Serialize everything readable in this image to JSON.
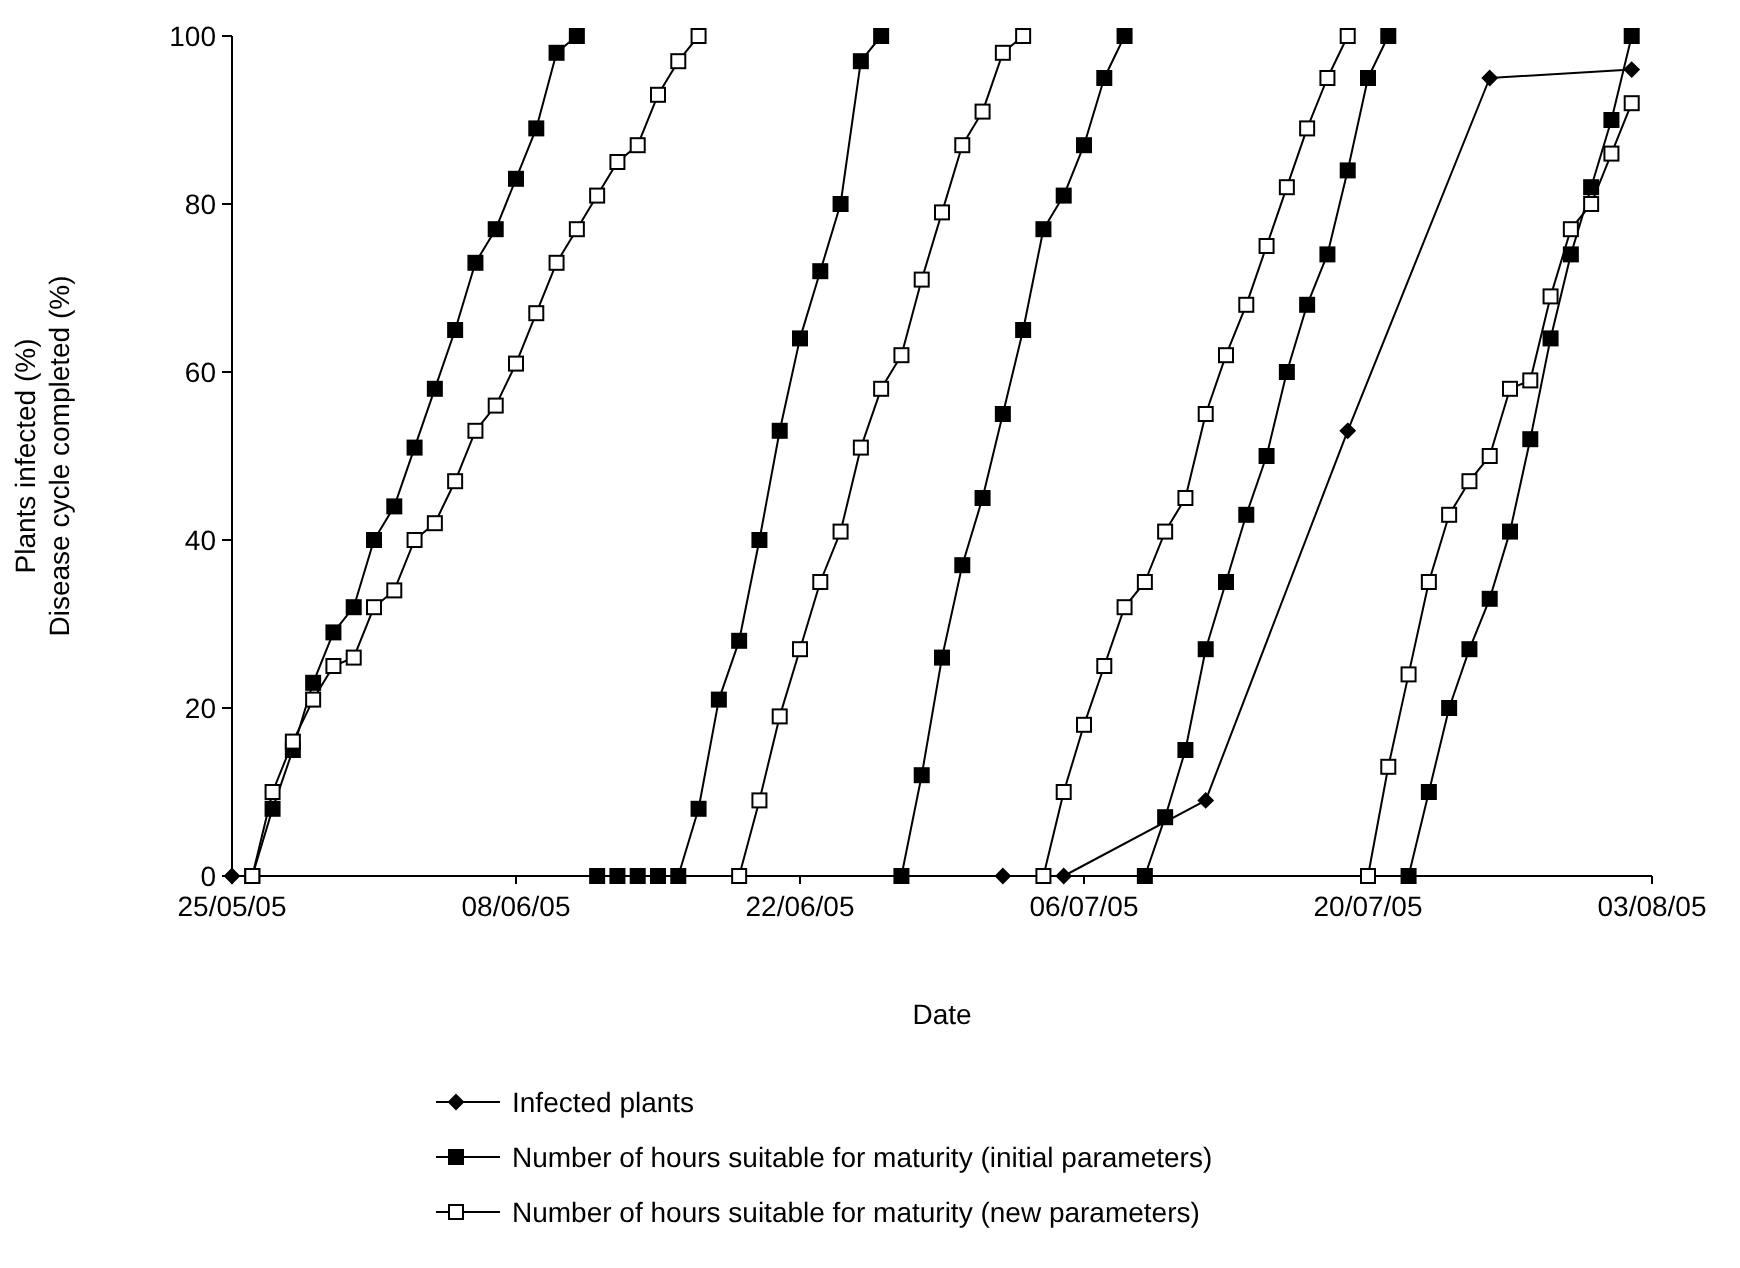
{
  "chart_data": {
    "type": "line",
    "xlabel": "Date",
    "ylabel": "Plants infected (%)\nDisease cycle completed (%)",
    "xlim": [
      "2005-05-25",
      "2005-08-03"
    ],
    "xticks": [
      {
        "value": "2005-05-25",
        "label": "25/05/05"
      },
      {
        "value": "2005-06-08",
        "label": "08/06/05"
      },
      {
        "value": "2005-06-22",
        "label": "22/06/05"
      },
      {
        "value": "2005-07-06",
        "label": "06/07/05"
      },
      {
        "value": "2005-07-20",
        "label": "20/07/05"
      },
      {
        "value": "2005-08-03",
        "label": "03/08/05"
      }
    ],
    "ylim": [
      0,
      100
    ],
    "yticks": [
      0,
      20,
      40,
      60,
      80,
      100
    ],
    "grid": false,
    "legend": "bottom",
    "line_style": "solid",
    "series": [
      {
        "name": "Infected plants",
        "color": "#000000",
        "marker": "diamond",
        "x": [
          "2005-05-25",
          "2005-07-02",
          "2005-07-05",
          "2005-07-12",
          "2005-07-19",
          "2005-07-26",
          "2005-08-02"
        ],
        "values": [
          0,
          0,
          0,
          9,
          53,
          95,
          96
        ]
      },
      {
        "name": "Number of hours suitable for maturity (initial parameters)",
        "color": "#000000",
        "marker": "square",
        "x": [
          "2005-05-26",
          "2005-05-27",
          "2005-05-28",
          "2005-05-29",
          "2005-05-30",
          "2005-05-31",
          "2005-06-01",
          "2005-06-02",
          "2005-06-03",
          "2005-06-04",
          "2005-06-05",
          "2005-06-06",
          "2005-06-07",
          "2005-06-08",
          "2005-06-09",
          "2005-06-10",
          "2005-06-11",
          "2005-06-11T18:00",
          "2005-06-12",
          "2005-06-13",
          "2005-06-14",
          "2005-06-15",
          "2005-06-16",
          "2005-06-17",
          "2005-06-18",
          "2005-06-19",
          "2005-06-20",
          "2005-06-21",
          "2005-06-22",
          "2005-06-23",
          "2005-06-24",
          "2005-06-25",
          "2005-06-26",
          "2005-06-26T12:00",
          "2005-06-27",
          "2005-06-28",
          "2005-06-29",
          "2005-06-30",
          "2005-07-01",
          "2005-07-02",
          "2005-07-03",
          "2005-07-04",
          "2005-07-05",
          "2005-07-06",
          "2005-07-07",
          "2005-07-08",
          "2005-07-08T12:00",
          "2005-07-09",
          "2005-07-10",
          "2005-07-11",
          "2005-07-12",
          "2005-07-13",
          "2005-07-14",
          "2005-07-15",
          "2005-07-16",
          "2005-07-17",
          "2005-07-18",
          "2005-07-19",
          "2005-07-20",
          "2005-07-21",
          "2005-07-21T12:00",
          "2005-07-22",
          "2005-07-23",
          "2005-07-24",
          "2005-07-25",
          "2005-07-26",
          "2005-07-27",
          "2005-07-28",
          "2005-07-29",
          "2005-07-30",
          "2005-07-31",
          "2005-08-01",
          "2005-08-02"
        ],
        "values": [
          0,
          8,
          15,
          23,
          29,
          32,
          40,
          44,
          51,
          58,
          65,
          73,
          77,
          83,
          89,
          98,
          100,
          null,
          0,
          0,
          0,
          0,
          0,
          8,
          21,
          28,
          40,
          53,
          64,
          72,
          80,
          97,
          100,
          null,
          0,
          12,
          26,
          37,
          45,
          55,
          65,
          77,
          81,
          87,
          95,
          100,
          null,
          0,
          7,
          15,
          27,
          35,
          43,
          50,
          60,
          68,
          74,
          84,
          95,
          100,
          null,
          0,
          10,
          20,
          27,
          33,
          41,
          52,
          64,
          74,
          82,
          90,
          100
        ]
      },
      {
        "name": "Number of hours suitable for maturity (new parameters)",
        "color": "#000000",
        "marker": "square",
        "x": [
          "2005-05-26",
          "2005-05-27",
          "2005-05-28",
          "2005-05-29",
          "2005-05-30",
          "2005-05-31",
          "2005-06-01",
          "2005-06-02",
          "2005-06-03",
          "2005-06-04",
          "2005-06-05",
          "2005-06-06",
          "2005-06-07",
          "2005-06-08",
          "2005-06-09",
          "2005-06-10",
          "2005-06-11",
          "2005-06-12",
          "2005-06-13",
          "2005-06-14",
          "2005-06-15",
          "2005-06-16",
          "2005-06-17",
          "2005-06-18",
          "2005-06-19",
          "2005-06-20",
          "2005-06-21",
          "2005-06-22",
          "2005-06-23",
          "2005-06-24",
          "2005-06-25",
          "2005-06-26",
          "2005-06-27",
          "2005-06-28",
          "2005-06-29",
          "2005-06-30",
          "2005-07-01",
          "2005-07-02",
          "2005-07-03",
          "2005-07-03T12:00",
          "2005-07-04",
          "2005-07-05",
          "2005-07-06",
          "2005-07-07",
          "2005-07-08",
          "2005-07-09",
          "2005-07-10",
          "2005-07-11",
          "2005-07-12",
          "2005-07-13",
          "2005-07-14",
          "2005-07-15",
          "2005-07-16",
          "2005-07-17",
          "2005-07-18",
          "2005-07-19",
          "2005-07-19T12:00",
          "2005-07-20",
          "2005-07-21",
          "2005-07-22",
          "2005-07-23",
          "2005-07-24",
          "2005-07-25",
          "2005-07-26",
          "2005-07-27",
          "2005-07-28",
          "2005-07-29",
          "2005-07-30",
          "2005-07-31",
          "2005-08-01",
          "2005-08-02"
        ],
        "values": [
          0,
          10,
          16,
          21,
          25,
          26,
          32,
          34,
          40,
          42,
          47,
          53,
          56,
          61,
          67,
          73,
          77,
          81,
          85,
          87,
          93,
          97,
          100,
          null,
          0,
          9,
          19,
          27,
          35,
          41,
          51,
          58,
          62,
          71,
          79,
          87,
          91,
          98,
          100,
          null,
          0,
          10,
          18,
          25,
          32,
          35,
          41,
          45,
          55,
          62,
          68,
          75,
          82,
          89,
          95,
          100,
          null,
          0,
          13,
          24,
          35,
          43,
          47,
          50,
          58,
          59,
          69,
          77,
          80,
          86,
          92
        ]
      }
    ]
  }
}
